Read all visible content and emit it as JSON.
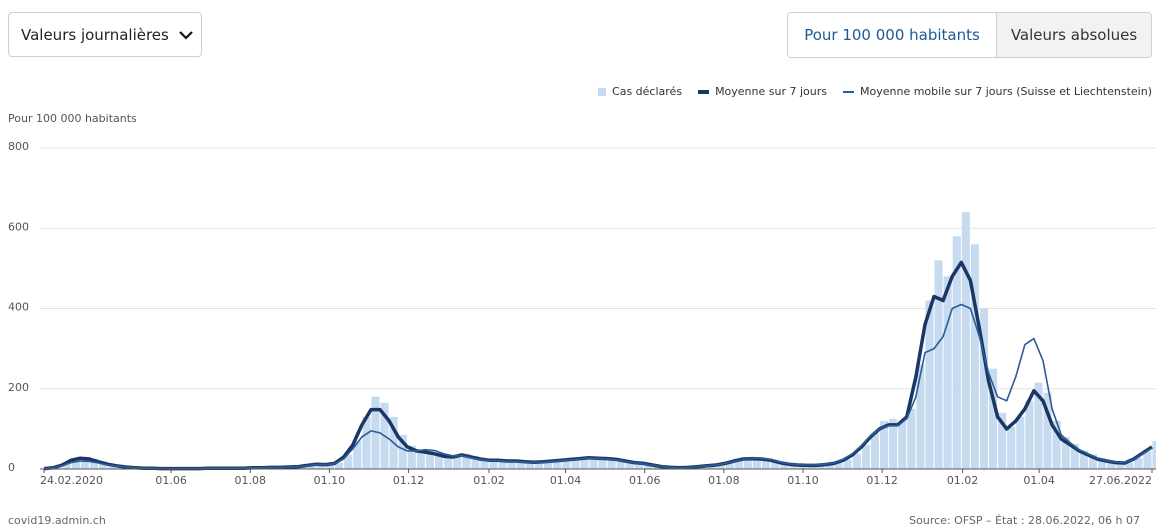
{
  "controls": {
    "dropdown": "Valeurs journalières",
    "toggle_active": "Pour 100 000 habitants",
    "toggle_other": "Valeurs absolues"
  },
  "footer": {
    "left": "covid19.admin.ch",
    "right": "Source: OFSP – État : 28.06.2022, 06 h 07"
  },
  "chart_data": {
    "type": "bar",
    "y_label": "Pour 100 000 habitants",
    "x": [
      "2020-02-24",
      "2020-03-02",
      "2020-03-09",
      "2020-03-16",
      "2020-03-23",
      "2020-03-30",
      "2020-04-06",
      "2020-04-13",
      "2020-04-20",
      "2020-04-27",
      "2020-05-04",
      "2020-05-11",
      "2020-05-18",
      "2020-05-25",
      "2020-06-01",
      "2020-06-08",
      "2020-06-15",
      "2020-06-22",
      "2020-06-29",
      "2020-07-06",
      "2020-07-13",
      "2020-07-20",
      "2020-07-27",
      "2020-08-03",
      "2020-08-10",
      "2020-08-17",
      "2020-08-24",
      "2020-08-31",
      "2020-09-07",
      "2020-09-14",
      "2020-09-21",
      "2020-09-28",
      "2020-10-05",
      "2020-10-12",
      "2020-10-19",
      "2020-10-26",
      "2020-11-02",
      "2020-11-09",
      "2020-11-16",
      "2020-11-23",
      "2020-11-30",
      "2020-12-07",
      "2020-12-14",
      "2020-12-21",
      "2020-12-28",
      "2021-01-04",
      "2021-01-11",
      "2021-01-18",
      "2021-01-25",
      "2021-02-01",
      "2021-02-08",
      "2021-02-15",
      "2021-02-22",
      "2021-03-01",
      "2021-03-08",
      "2021-03-15",
      "2021-03-22",
      "2021-03-29",
      "2021-04-05",
      "2021-04-12",
      "2021-04-19",
      "2021-04-26",
      "2021-05-03",
      "2021-05-10",
      "2021-05-17",
      "2021-05-24",
      "2021-05-31",
      "2021-06-07",
      "2021-06-14",
      "2021-06-21",
      "2021-06-28",
      "2021-07-05",
      "2021-07-12",
      "2021-07-19",
      "2021-07-26",
      "2021-08-02",
      "2021-08-09",
      "2021-08-16",
      "2021-08-23",
      "2021-08-30",
      "2021-09-06",
      "2021-09-13",
      "2021-09-20",
      "2021-09-27",
      "2021-10-04",
      "2021-10-11",
      "2021-10-18",
      "2021-10-25",
      "2021-11-01",
      "2021-11-08",
      "2021-11-15",
      "2021-11-22",
      "2021-11-29",
      "2021-12-06",
      "2021-12-13",
      "2021-12-20",
      "2021-12-27",
      "2022-01-03",
      "2022-01-10",
      "2022-01-17",
      "2022-01-24",
      "2022-01-31",
      "2022-02-07",
      "2022-02-14",
      "2022-02-21",
      "2022-02-28",
      "2022-03-07",
      "2022-03-14",
      "2022-03-21",
      "2022-03-28",
      "2022-04-04",
      "2022-04-11",
      "2022-04-18",
      "2022-04-25",
      "2022-05-02",
      "2022-05-09",
      "2022-05-16",
      "2022-05-23",
      "2022-05-30",
      "2022-06-06",
      "2022-06-13",
      "2022-06-20",
      "2022-06-27"
    ],
    "series": [
      {
        "name": "Cas déclarés",
        "type": "bar",
        "color": "#c6daf0",
        "values": [
          1,
          4,
          12,
          25,
          30,
          26,
          19,
          12,
          8,
          5,
          3,
          2,
          2,
          1,
          1,
          1,
          1,
          1,
          2,
          2,
          2,
          2,
          2,
          3,
          3,
          4,
          4,
          6,
          7,
          10,
          13,
          12,
          16,
          35,
          70,
          130,
          180,
          165,
          130,
          85,
          58,
          48,
          45,
          40,
          34,
          32,
          38,
          32,
          26,
          23,
          23,
          21,
          21,
          19,
          18,
          19,
          21,
          23,
          25,
          28,
          30,
          28,
          27,
          25,
          21,
          17,
          15,
          11,
          6,
          4,
          3,
          4,
          6,
          8,
          11,
          15,
          21,
          27,
          28,
          26,
          23,
          17,
          12,
          10,
          9,
          9,
          12,
          15,
          24,
          38,
          60,
          90,
          120,
          125,
          120,
          150,
          260,
          420,
          520,
          480,
          580,
          640,
          560,
          400,
          250,
          140,
          105,
          130,
          170,
          215,
          190,
          120,
          80,
          62,
          46,
          36,
          26,
          20,
          17,
          16,
          27,
          44,
          70
        ]
      },
      {
        "name": "Moyenne sur 7 jours",
        "type": "line",
        "color": "#1a3665",
        "values": [
          1,
          3,
          10,
          22,
          27,
          25,
          18,
          12,
          8,
          5,
          3,
          2,
          2,
          1,
          1,
          1,
          1,
          1,
          2,
          2,
          2,
          2,
          2,
          3,
          3,
          4,
          4,
          5,
          6,
          9,
          12,
          11,
          14,
          30,
          60,
          110,
          148,
          148,
          120,
          80,
          55,
          45,
          42,
          38,
          32,
          30,
          35,
          30,
          25,
          22,
          22,
          20,
          20,
          18,
          17,
          18,
          20,
          22,
          24,
          26,
          28,
          27,
          26,
          24,
          20,
          16,
          14,
          10,
          6,
          4,
          3,
          4,
          6,
          8,
          10,
          14,
          20,
          25,
          26,
          25,
          22,
          16,
          12,
          10,
          9,
          9,
          11,
          14,
          22,
          35,
          55,
          80,
          100,
          110,
          110,
          130,
          230,
          360,
          430,
          420,
          480,
          515,
          470,
          350,
          220,
          130,
          100,
          120,
          150,
          195,
          170,
          110,
          75,
          60,
          45,
          35,
          25,
          20,
          16,
          15,
          25,
          40,
          55
        ]
      },
      {
        "name": "Moyenne mobile sur 7 jours (Suisse et Liechtenstein)",
        "type": "line",
        "color": "#2b5d96",
        "values": [
          1,
          3,
          8,
          16,
          20,
          19,
          15,
          10,
          7,
          5,
          3,
          2,
          2,
          1,
          1,
          1,
          1,
          1,
          2,
          2,
          2,
          2,
          2,
          3,
          3,
          4,
          4,
          5,
          6,
          8,
          11,
          11,
          13,
          25,
          50,
          80,
          95,
          90,
          75,
          55,
          45,
          45,
          48,
          46,
          38,
          33,
          33,
          28,
          24,
          21,
          21,
          19,
          19,
          17,
          16,
          17,
          19,
          21,
          23,
          25,
          27,
          26,
          25,
          23,
          19,
          16,
          13,
          10,
          6,
          4,
          3,
          4,
          6,
          8,
          10,
          14,
          19,
          24,
          27,
          27,
          24,
          18,
          13,
          11,
          10,
          10,
          12,
          15,
          24,
          38,
          58,
          82,
          100,
          108,
          108,
          125,
          180,
          290,
          300,
          330,
          400,
          410,
          400,
          330,
          240,
          180,
          170,
          230,
          310,
          325,
          270,
          150,
          85,
          65,
          48,
          37,
          27,
          21,
          17,
          16,
          24,
          38,
          52
        ]
      }
    ],
    "xlim": [
      "2020-02-24",
      "2022-06-27"
    ],
    "xticks": [
      {
        "value": "2020-02-24",
        "label": "24.02.2020"
      },
      {
        "value": "2020-06-01",
        "label": "01.06"
      },
      {
        "value": "2020-08-01",
        "label": "01.08"
      },
      {
        "value": "2020-10-01",
        "label": "01.10"
      },
      {
        "value": "2020-12-01",
        "label": "01.12"
      },
      {
        "value": "2021-02-01",
        "label": "01.02"
      },
      {
        "value": "2021-04-01",
        "label": "01.04"
      },
      {
        "value": "2021-06-01",
        "label": "01.06"
      },
      {
        "value": "2021-08-01",
        "label": "01.08"
      },
      {
        "value": "2021-10-01",
        "label": "01.10"
      },
      {
        "value": "2021-12-01",
        "label": "01.12"
      },
      {
        "value": "2022-02-01",
        "label": "01.02"
      },
      {
        "value": "2022-04-01",
        "label": "01.04"
      },
      {
        "value": "2022-06-27",
        "label": "27.06.2022"
      }
    ],
    "ylim": [
      0,
      800
    ],
    "yticks": [
      0,
      200,
      400,
      600,
      800
    ],
    "grid": true,
    "legend": "top-right"
  }
}
